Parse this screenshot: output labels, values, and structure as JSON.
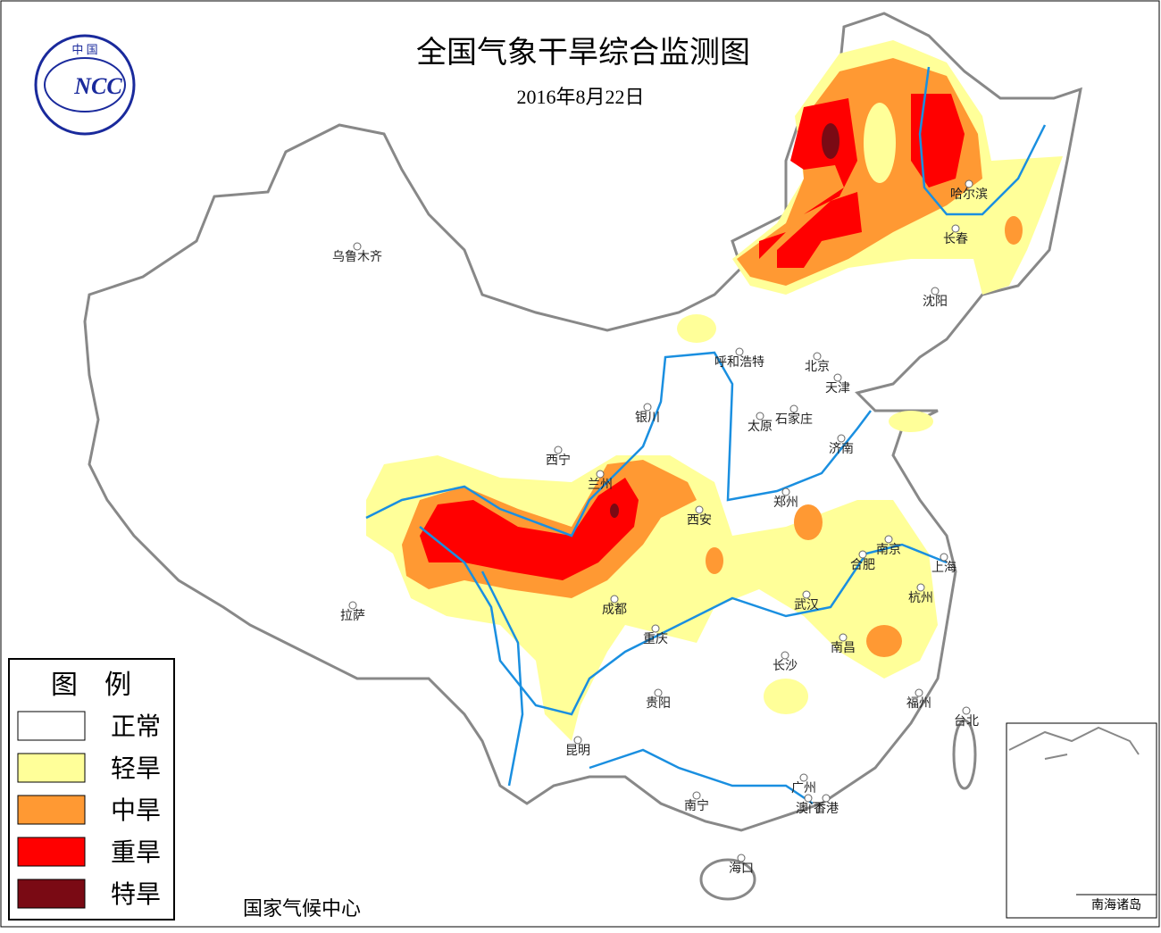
{
  "header": {
    "title": "全国气象干旱综合监测图",
    "date": "2016年8月22日",
    "logo_top": "中 国",
    "logo": "NCC"
  },
  "legend": {
    "title": "图　例",
    "items": [
      {
        "label": "正常",
        "color": "#ffffff"
      },
      {
        "label": "轻旱",
        "color": "#ffff99"
      },
      {
        "label": "中旱",
        "color": "#ff9933"
      },
      {
        "label": "重旱",
        "color": "#ff0000"
      },
      {
        "label": "特旱",
        "color": "#7a0a14"
      }
    ]
  },
  "cities": [
    "乌鲁木齐",
    "哈尔滨",
    "长春",
    "沈阳",
    "呼和浩特",
    "北京",
    "天津",
    "银川",
    "太原",
    "石家庄",
    "济南",
    "西宁",
    "兰州",
    "郑州",
    "西安",
    "南京",
    "合肥",
    "上海",
    "成都",
    "武汉",
    "杭州",
    "拉萨",
    "重庆",
    "南昌",
    "长沙",
    "贵阳",
    "福州",
    "台北",
    "昆明",
    "广州",
    "南宁",
    "澳门",
    "香港",
    "海口"
  ],
  "footer": "国家气候中心",
  "inset": "南海诸岛"
}
